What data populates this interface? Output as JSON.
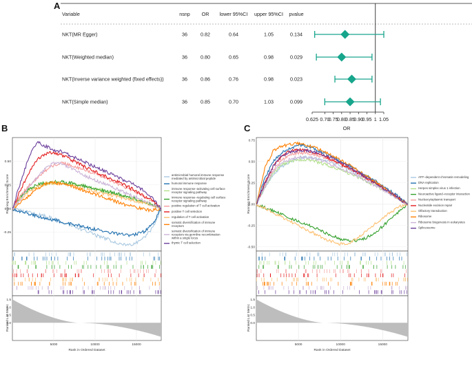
{
  "panel_labels": {
    "a": "A",
    "b": "B",
    "c": "C"
  },
  "forest": {
    "headers": {
      "variable": "Variable",
      "nsnp": "nsnp",
      "or": "OR",
      "lower": "lower 95%CI",
      "upper": "upper 95%CI",
      "pvalue": "pvalue"
    },
    "rows": [
      {
        "variable": "NKT(MR Egger)",
        "nsnp": "36",
        "or": "0.82",
        "lower": "0.64",
        "upper": "1.05",
        "pvalue": "0.134"
      },
      {
        "variable": "NKT(Weighted median)",
        "nsnp": "36",
        "or": "0.80",
        "lower": "0.65",
        "upper": "0.98",
        "pvalue": "0.029"
      },
      {
        "variable": "NKT(Inverse variance weighted (fixed effects))",
        "nsnp": "36",
        "or": "0.86",
        "lower": "0.76",
        "upper": "0.98",
        "pvalue": "0.023"
      },
      {
        "variable": "NKT(Simple median)",
        "nsnp": "36",
        "or": "0.85",
        "lower": "0.70",
        "upper": "1.03",
        "pvalue": "0.099"
      }
    ],
    "xaxis": {
      "title": "OR",
      "ticks": [
        0.625,
        0.7,
        0.75,
        0.8,
        0.85,
        0.9,
        0.95,
        1,
        1.05
      ],
      "tick_labels": [
        "0.625",
        "0.70",
        "0.75",
        "0.80",
        "0.85",
        "0.90",
        "0.95",
        "1",
        "1.05"
      ]
    },
    "marker_color": "#17a58c",
    "ref_line": 1
  },
  "gsea_b": {
    "ylabel_es": "Running Enrichment Score",
    "ylabel_rank": "Ranked List Metric",
    "xlabel": "Rank in Ordered Dataset",
    "es_ticks": [
      "0.50",
      "0.25",
      "0.00",
      "-0.25"
    ],
    "rank_ticks": [
      "1.5",
      "1.0",
      "0.5",
      "0.0"
    ],
    "x_ticks": [
      "5000",
      "10000",
      "15000"
    ],
    "legend": [
      {
        "label1": "antimicrobial humoral immune response",
        "label2": "mediated by antimicrobial peptide",
        "label3": "",
        "color": "#a8c8e0"
      },
      {
        "label1": "humoral immune response",
        "label2": "",
        "label3": "",
        "color": "#1f6fae"
      },
      {
        "label1": "immune response−activating cell surface",
        "label2": "receptor signaling pathway",
        "label3": "",
        "color": "#b2df8a"
      },
      {
        "label1": "immune response−regulating cell surface",
        "label2": "receptor signaling pathway",
        "label3": "",
        "color": "#33a02c"
      },
      {
        "label1": "positive regulation of T cell activation",
        "label2": "",
        "label3": "",
        "color": "#f49a9a"
      },
      {
        "label1": "positive T cell selection",
        "label2": "",
        "label3": "",
        "color": "#e31a1c"
      },
      {
        "label1": "regulation of T cell activation",
        "label2": "",
        "label3": "",
        "color": "#fdbf6f"
      },
      {
        "label1": "somatic diversification of immune",
        "label2": "receptors",
        "label3": "",
        "color": "#ff7f00"
      },
      {
        "label1": "somatic diversification of immune",
        "label2": "receptors via germline recombination",
        "label3": "within a single locus",
        "color": "#cab2d6"
      },
      {
        "label1": "thymic T cell selection",
        "label2": "",
        "label3": "",
        "color": "#6a3d9a"
      }
    ]
  },
  "gsea_c": {
    "ylabel_es": "Running Enrichment Score",
    "ylabel_rank": "Ranked List Metric",
    "xlabel": "Rank in Ordered Dataset",
    "es_ticks": [
      "0.75",
      "0.50",
      "0.25",
      "0.00",
      "-0.25",
      "-0.50"
    ],
    "rank_ticks": [
      "1.5",
      "1.0",
      "0.5",
      "0.0"
    ],
    "x_ticks": [
      "5000",
      "10000",
      "15000"
    ],
    "legend": [
      {
        "label": "ATP−dependent chromatin remodeling",
        "color": "#a8c8e0"
      },
      {
        "label": "DNA replication",
        "color": "#1f6fae"
      },
      {
        "label": "Herpes simplex virus 1 infection",
        "color": "#b2df8a"
      },
      {
        "label": "Neuroactive ligand−receptor interaction",
        "color": "#33a02c"
      },
      {
        "label": "Nucleocytoplasmic transport",
        "color": "#f49a9a"
      },
      {
        "label": "Nucleotide excision repair",
        "color": "#e31a1c"
      },
      {
        "label": "Olfactory transduction",
        "color": "#fdbf6f"
      },
      {
        "label": "Ribosome",
        "color": "#ff7f00"
      },
      {
        "label": "Ribosome biogenesis in eukaryotes",
        "color": "#cab2d6"
      },
      {
        "label": "Spliceosome",
        "color": "#6a3d9a"
      }
    ]
  },
  "chart_data": [
    {
      "type": "forest",
      "title": "",
      "xlabel": "OR",
      "categories": [
        "NKT(MR Egger)",
        "NKT(Weighted median)",
        "NKT(Inverse variance weighted (fixed effects))",
        "NKT(Simple median)"
      ],
      "series": [
        {
          "name": "OR",
          "values": [
            0.82,
            0.8,
            0.86,
            0.85
          ]
        },
        {
          "name": "lower 95%CI",
          "values": [
            0.64,
            0.65,
            0.76,
            0.7
          ]
        },
        {
          "name": "upper 95%CI",
          "values": [
            1.05,
            0.98,
            0.98,
            1.03
          ]
        }
      ],
      "xlim": [
        0.625,
        1.05
      ]
    },
    {
      "type": "line",
      "title": "",
      "xlabel": "Rank in Ordered Dataset",
      "ylabel": "Running Enrichment Score",
      "xlim": [
        0,
        18000
      ],
      "ylim": [
        -0.45,
        0.75
      ],
      "x": [
        0,
        1000,
        2000,
        3000,
        4000,
        5000,
        6000,
        7000,
        8000,
        9000,
        10000,
        11000,
        12000,
        13000,
        14000,
        15000,
        16000,
        17000,
        18000
      ],
      "series": [
        {
          "name": "antimicrobial humoral immune response mediated by antimicrobial peptide",
          "values": [
            0,
            -0.02,
            -0.04,
            -0.06,
            -0.08,
            -0.11,
            -0.14,
            -0.17,
            -0.21,
            -0.24,
            -0.28,
            -0.31,
            -0.34,
            -0.37,
            -0.39,
            -0.36,
            -0.3,
            -0.2,
            0
          ]
        },
        {
          "name": "humoral immune response",
          "values": [
            0,
            -0.03,
            -0.06,
            -0.08,
            -0.1,
            -0.12,
            -0.14,
            -0.16,
            -0.18,
            -0.2,
            -0.22,
            -0.24,
            -0.26,
            -0.27,
            -0.28,
            -0.27,
            -0.24,
            -0.16,
            0
          ]
        },
        {
          "name": "immune response−activating cell surface receptor signaling pathway",
          "values": [
            0,
            0.12,
            0.2,
            0.24,
            0.26,
            0.27,
            0.27,
            0.26,
            0.25,
            0.23,
            0.21,
            0.19,
            0.17,
            0.14,
            0.12,
            0.09,
            0.07,
            0.04,
            0
          ]
        },
        {
          "name": "immune response−regulating cell surface receptor signaling pathway",
          "values": [
            0,
            0.13,
            0.21,
            0.25,
            0.27,
            0.28,
            0.28,
            0.27,
            0.25,
            0.23,
            0.21,
            0.19,
            0.17,
            0.15,
            0.12,
            0.1,
            0.07,
            0.04,
            0
          ]
        },
        {
          "name": "positive regulation of T cell activation",
          "values": [
            0,
            0.14,
            0.24,
            0.32,
            0.4,
            0.46,
            0.48,
            0.46,
            0.43,
            0.4,
            0.37,
            0.33,
            0.29,
            0.25,
            0.21,
            0.17,
            0.12,
            0.07,
            0
          ]
        },
        {
          "name": "positive T cell selection",
          "values": [
            0,
            0.2,
            0.38,
            0.52,
            0.58,
            0.59,
            0.56,
            0.52,
            0.48,
            0.43,
            0.39,
            0.35,
            0.31,
            0.27,
            0.23,
            0.18,
            0.13,
            0.08,
            0
          ]
        },
        {
          "name": "regulation of T cell activation",
          "values": [
            0,
            0.1,
            0.18,
            0.23,
            0.26,
            0.27,
            0.26,
            0.24,
            0.22,
            0.2,
            0.18,
            0.16,
            0.14,
            0.12,
            0.1,
            0.08,
            0.06,
            0.03,
            0
          ]
        },
        {
          "name": "somatic diversification of immune receptors",
          "values": [
            0,
            0.06,
            0.14,
            0.21,
            0.26,
            0.27,
            0.26,
            0.24,
            0.21,
            0.18,
            0.15,
            0.12,
            0.09,
            0.06,
            0.03,
            0.01,
            -0.01,
            -0.02,
            0
          ]
        },
        {
          "name": "somatic diversification of immune receptors via germline recombination within a single locus",
          "values": [
            0,
            0.1,
            0.22,
            0.33,
            0.42,
            0.48,
            0.47,
            0.43,
            0.38,
            0.34,
            0.3,
            0.27,
            0.23,
            0.19,
            0.15,
            0.12,
            0.08,
            0.04,
            0
          ]
        },
        {
          "name": "thymic T cell selection",
          "values": [
            0,
            0.28,
            0.55,
            0.7,
            0.66,
            0.62,
            0.6,
            0.56,
            0.52,
            0.48,
            0.44,
            0.4,
            0.36,
            0.32,
            0.28,
            0.24,
            0.18,
            0.1,
            0
          ]
        }
      ]
    },
    {
      "type": "line",
      "title": "",
      "xlabel": "Rank in Ordered Dataset",
      "ylabel": "Running Enrichment Score",
      "xlim": [
        0,
        18000
      ],
      "ylim": [
        -0.55,
        0.78
      ],
      "x": [
        0,
        1000,
        2000,
        3000,
        4000,
        5000,
        6000,
        7000,
        8000,
        9000,
        10000,
        11000,
        12000,
        13000,
        14000,
        15000,
        16000,
        17000,
        18000
      ],
      "series": [
        {
          "name": "ATP−dependent chromatin remodeling",
          "values": [
            0,
            0.18,
            0.34,
            0.44,
            0.5,
            0.54,
            0.55,
            0.54,
            0.52,
            0.49,
            0.45,
            0.41,
            0.36,
            0.31,
            0.26,
            0.2,
            0.14,
            0.07,
            0
          ]
        },
        {
          "name": "DNA replication",
          "values": [
            0,
            0.3,
            0.5,
            0.6,
            0.65,
            0.7,
            0.68,
            0.64,
            0.6,
            0.55,
            0.5,
            0.45,
            0.4,
            0.34,
            0.28,
            0.22,
            0.15,
            0.08,
            0
          ]
        },
        {
          "name": "Herpes simplex virus 1 infection",
          "values": [
            0,
            0.2,
            0.36,
            0.46,
            0.5,
            0.52,
            0.52,
            0.5,
            0.47,
            0.44,
            0.4,
            0.36,
            0.32,
            0.27,
            0.22,
            0.17,
            0.12,
            0.06,
            0
          ]
        },
        {
          "name": "Neuroactive ligand−receptor interaction",
          "values": [
            0,
            -0.04,
            -0.08,
            -0.12,
            -0.16,
            -0.2,
            -0.24,
            -0.28,
            -0.33,
            -0.37,
            -0.41,
            -0.43,
            -0.43,
            -0.4,
            -0.34,
            -0.26,
            -0.17,
            -0.08,
            0
          ]
        },
        {
          "name": "Nucleocytoplasmic transport",
          "values": [
            0,
            0.22,
            0.4,
            0.52,
            0.58,
            0.6,
            0.6,
            0.58,
            0.55,
            0.51,
            0.47,
            0.42,
            0.37,
            0.31,
            0.25,
            0.19,
            0.13,
            0.06,
            0
          ]
        },
        {
          "name": "Nucleotide excision repair",
          "values": [
            0,
            0.25,
            0.44,
            0.56,
            0.62,
            0.64,
            0.63,
            0.6,
            0.56,
            0.52,
            0.47,
            0.42,
            0.37,
            0.31,
            0.25,
            0.19,
            0.13,
            0.06,
            0
          ]
        },
        {
          "name": "Olfactory transduction",
          "values": [
            0,
            -0.05,
            -0.1,
            -0.15,
            -0.2,
            -0.25,
            -0.3,
            -0.35,
            -0.4,
            -0.44,
            -0.47,
            -0.46,
            -0.4,
            -0.32,
            -0.24,
            -0.16,
            -0.09,
            -0.03,
            0
          ]
        },
        {
          "name": "Ribosome",
          "values": [
            0,
            0.42,
            0.62,
            0.68,
            0.7,
            0.71,
            0.69,
            0.66,
            0.62,
            0.57,
            0.52,
            0.46,
            0.4,
            0.34,
            0.27,
            0.2,
            0.13,
            0.06,
            0
          ]
        },
        {
          "name": "Ribosome biogenesis in eukaryotes",
          "values": [
            0,
            0.2,
            0.38,
            0.48,
            0.53,
            0.55,
            0.55,
            0.53,
            0.5,
            0.46,
            0.42,
            0.38,
            0.33,
            0.28,
            0.22,
            0.17,
            0.11,
            0.05,
            0
          ]
        },
        {
          "name": "Spliceosome",
          "values": [
            0,
            0.24,
            0.44,
            0.56,
            0.61,
            0.63,
            0.63,
            0.61,
            0.58,
            0.54,
            0.49,
            0.44,
            0.38,
            0.32,
            0.26,
            0.19,
            0.13,
            0.06,
            0
          ]
        }
      ]
    }
  ]
}
